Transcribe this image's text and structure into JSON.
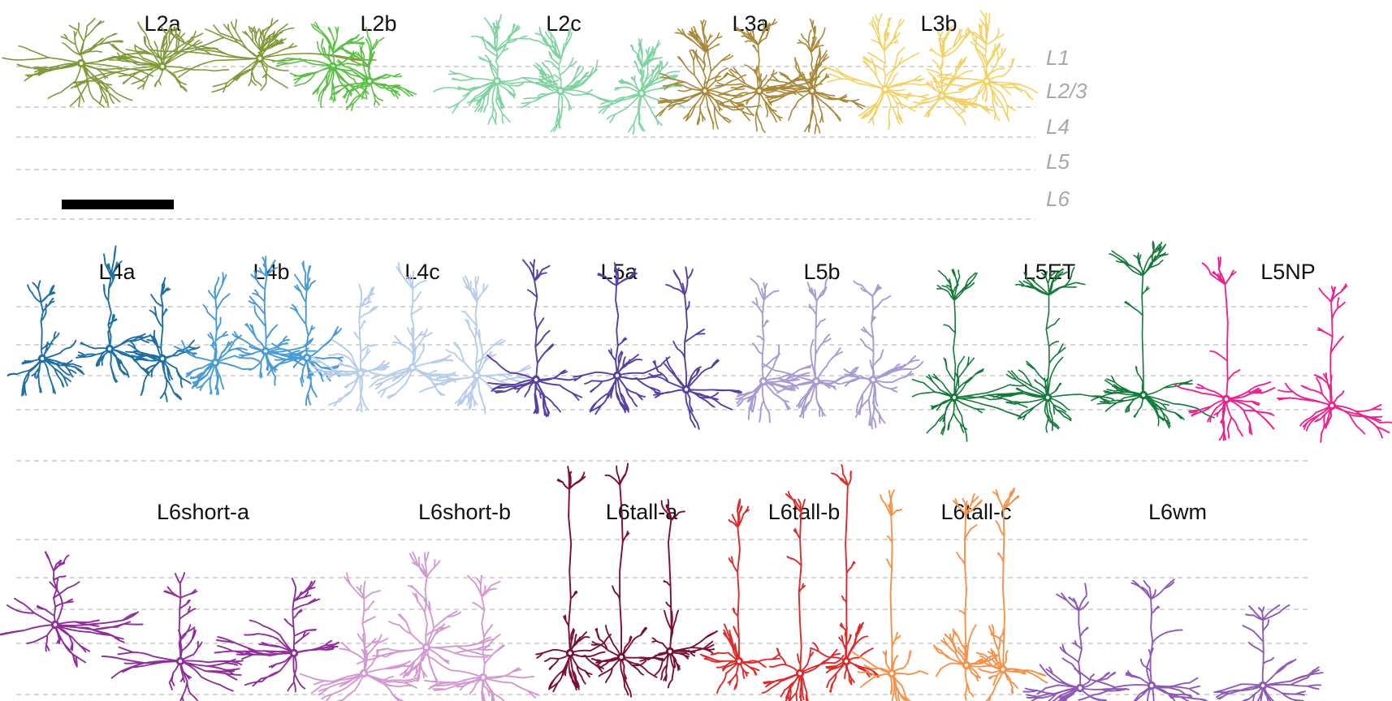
{
  "layer_labels": [
    "L1",
    "L2/3",
    "L4",
    "L5",
    "L6"
  ],
  "panels": [
    {
      "id": "superficial",
      "types": [
        {
          "label": "L2a",
          "color": "#7f9a3a",
          "cells": 3
        },
        {
          "label": "L2b",
          "color": "#5cbf45",
          "cells": 2
        },
        {
          "label": "L2c",
          "color": "#7fd3a0",
          "cells": 3
        },
        {
          "label": "L3a",
          "color": "#a8893a",
          "cells": 3
        },
        {
          "label": "L3b",
          "color": "#f2d266",
          "cells": 3
        }
      ]
    },
    {
      "id": "middle",
      "types": [
        {
          "label": "L4a",
          "color": "#1f6fa3",
          "cells": 3
        },
        {
          "label": "L4b",
          "color": "#4a9ad4",
          "cells": 3
        },
        {
          "label": "L4c",
          "color": "#b7cdea",
          "cells": 3
        },
        {
          "label": "L5a",
          "color": "#5840a0",
          "cells": 3
        },
        {
          "label": "L5b",
          "color": "#a99bd0",
          "cells": 3
        },
        {
          "label": "L5ET",
          "color": "#137a3a",
          "cells": 3
        },
        {
          "label": "L5NP",
          "color": "#e8258f",
          "cells": 2
        }
      ]
    },
    {
      "id": "deep",
      "types": [
        {
          "label": "L6short-a",
          "color": "#8f2f9a",
          "cells": 3
        },
        {
          "label": "L6short-b",
          "color": "#d39ad0",
          "cells": 3
        },
        {
          "label": "L6tall-a",
          "color": "#7a1033",
          "cells": 3
        },
        {
          "label": "L6tall-b",
          "color": "#dd2a2a",
          "cells": 3
        },
        {
          "label": "L6tall-c",
          "color": "#f5924a",
          "cells": 3
        },
        {
          "label": "L6wm",
          "color": "#8f5ab5",
          "cells": 3
        }
      ]
    }
  ],
  "scale_bar_color": "#000000"
}
